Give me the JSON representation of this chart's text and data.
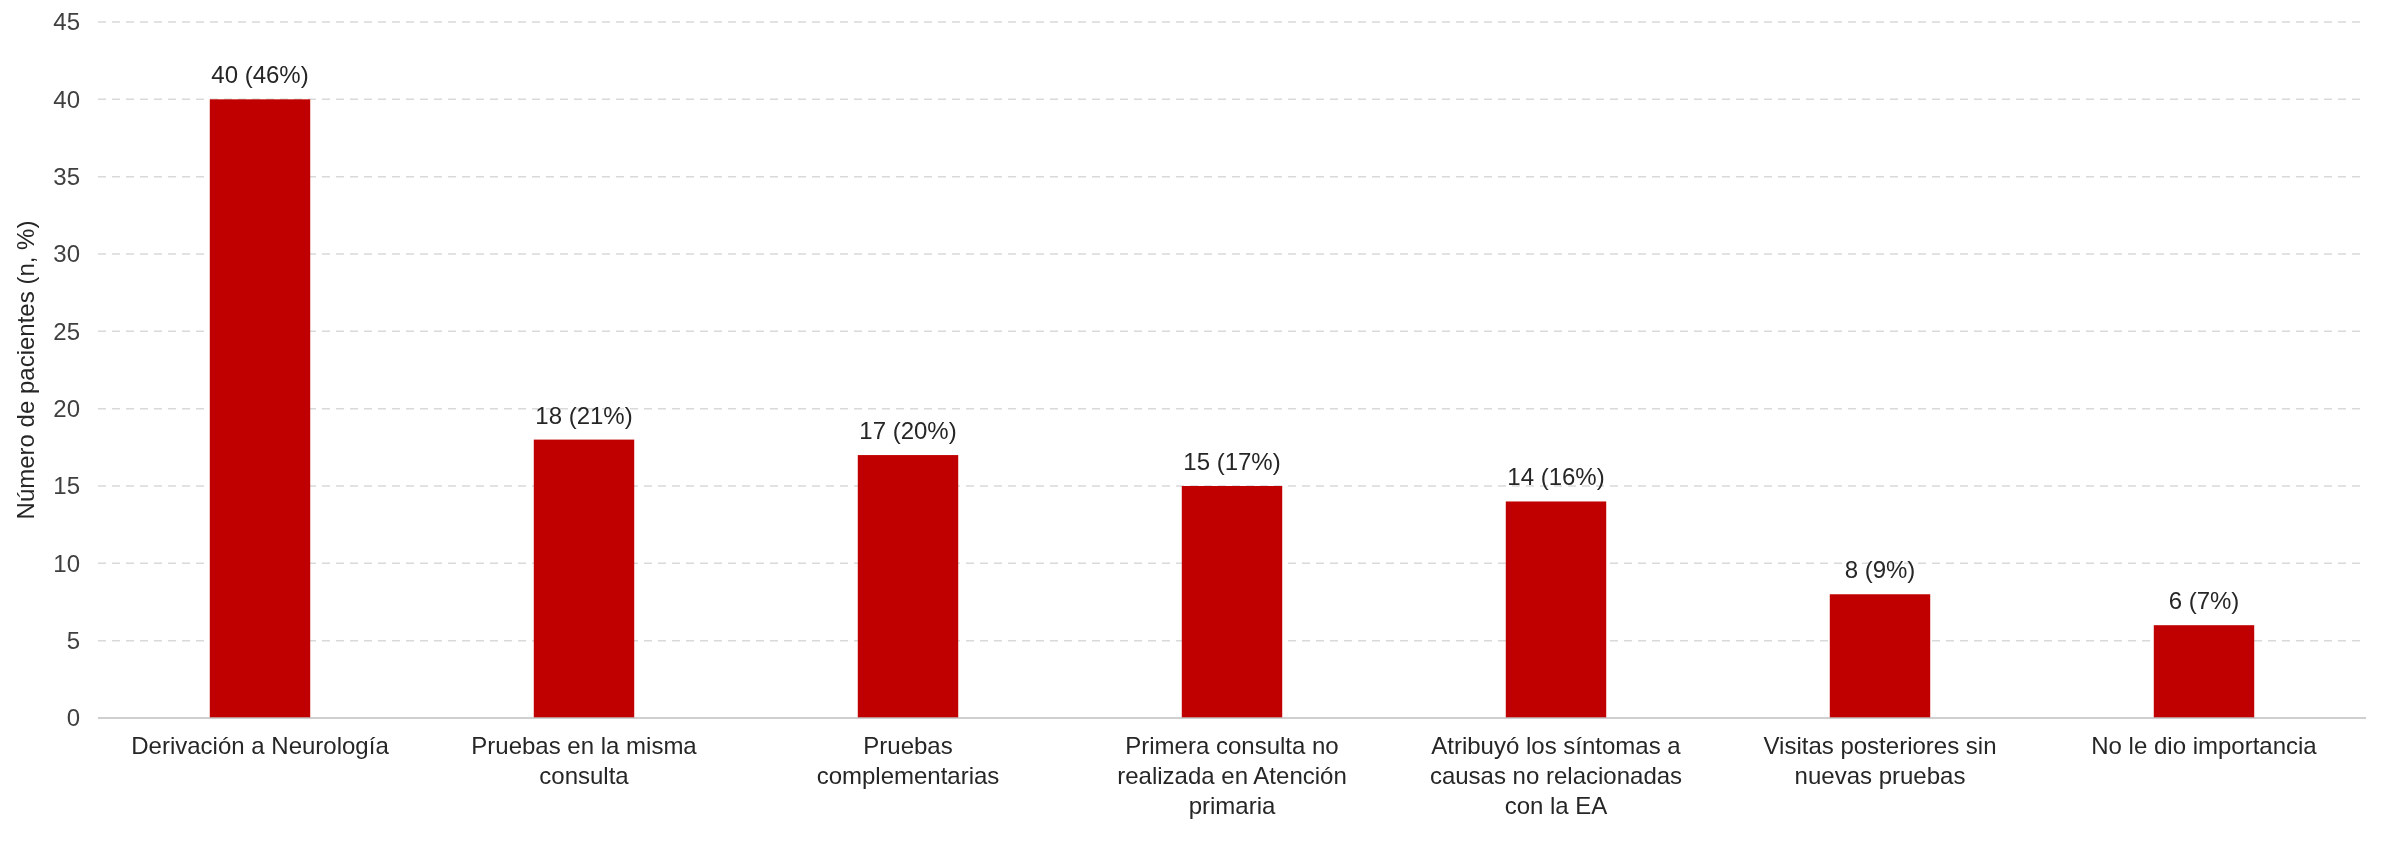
{
  "chart_data": {
    "type": "bar",
    "ylabel": "Número de pacientes (n, %)",
    "categories": [
      "Derivación a Neurología",
      "Pruebas en la misma consulta",
      "Pruebas complementarias",
      "Primera consulta no realizada en Atención primaria",
      "Atribuyó los síntomas a causas no relacionadas con la EA",
      "Visitas posteriores sin nuevas pruebas",
      "No le dio importancia"
    ],
    "values": [
      40,
      18,
      17,
      15,
      14,
      8,
      6
    ],
    "value_labels": [
      "40 (46%)",
      "18 (21%)",
      "17 (20%)",
      "15 (17%)",
      "14 (16%)",
      "8 (9%)",
      "6 (7%)"
    ],
    "color": "#c00000",
    "ylim": [
      0,
      45
    ],
    "yticks": [
      0,
      5,
      10,
      15,
      20,
      25,
      30,
      35,
      40,
      45
    ],
    "grid": "y"
  }
}
